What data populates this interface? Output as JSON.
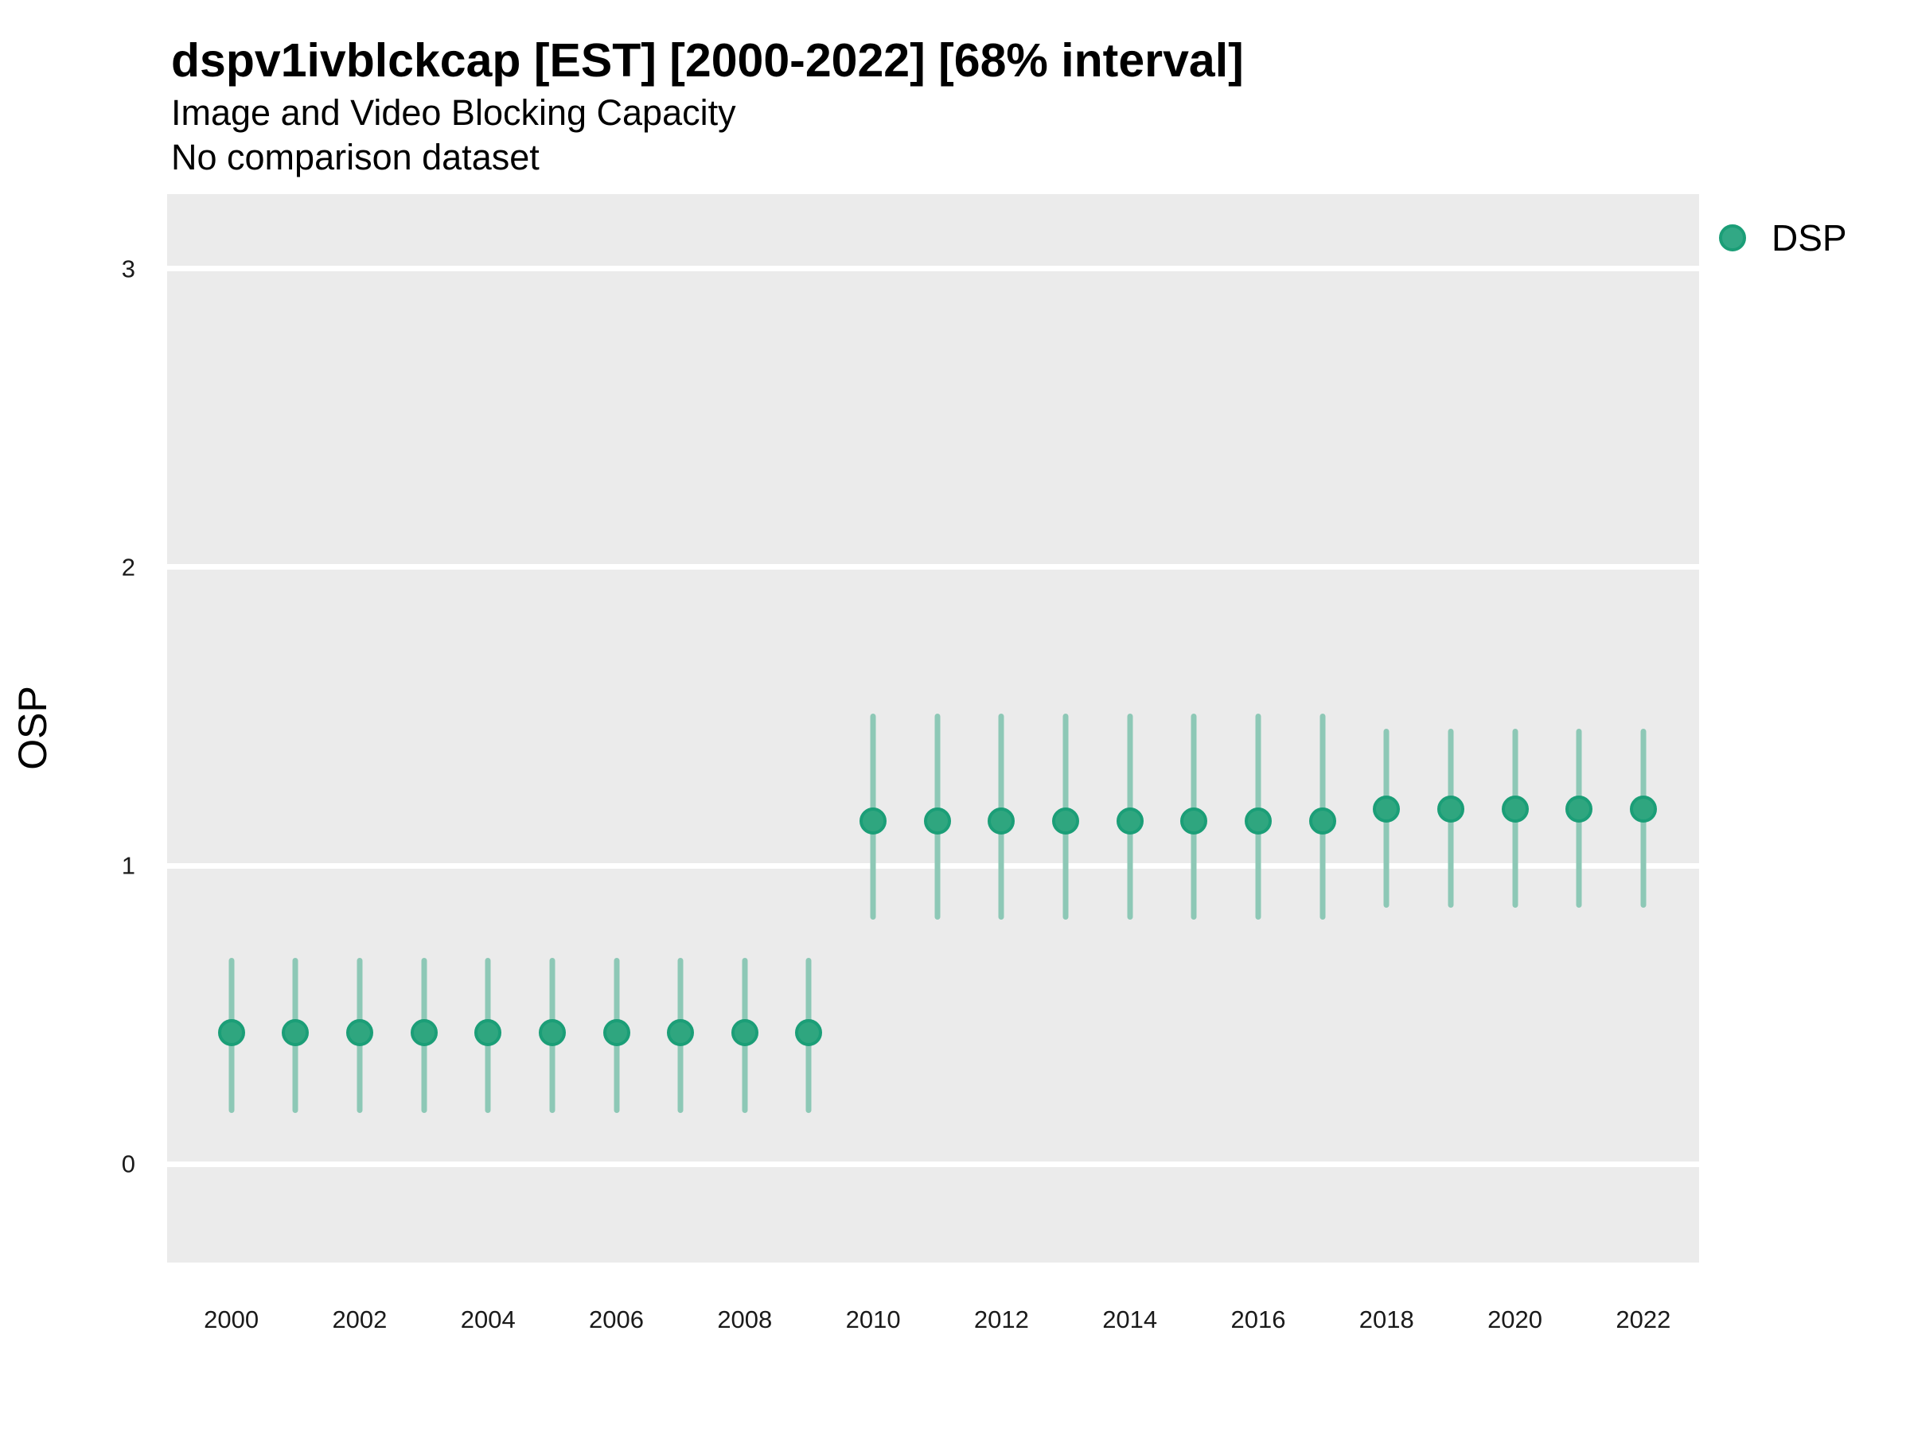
{
  "header": {
    "title": "dspv1ivblckcap [EST] [2000-2022] [68% interval]",
    "subtitle": "Image and Video Blocking Capacity",
    "note": "No comparison dataset"
  },
  "legend": {
    "items": [
      {
        "label": "DSP",
        "dot_fill": "#32a885",
        "dot_border": "#1b9e77"
      }
    ]
  },
  "colors": {
    "accent_green": "#1b9e77",
    "marker_fill": "#2fa67f",
    "marker_border": "#1b9e77",
    "interval_bar": "#8dc8b6",
    "panel_background": "#ebebeb",
    "gridline": "#ffffff",
    "text": "#000000"
  },
  "chart_data": {
    "type": "scatter",
    "title": "dspv1ivblckcap [EST] [2000-2022] [68% interval]",
    "subtitle": "Image and Video Blocking Capacity",
    "note": "No comparison dataset",
    "xlabel": "",
    "ylabel": "OSP",
    "interval": "68%",
    "legend_position": "right",
    "grid": "horizontal-major-white-on-gray",
    "xlim": [
      1999.0,
      2022.87
    ],
    "ylim": [
      -0.33,
      3.25
    ],
    "x_tick_labels": [
      "2000",
      "2002",
      "2004",
      "2006",
      "2008",
      "2010",
      "2012",
      "2014",
      "2016",
      "2018",
      "2020",
      "2022"
    ],
    "x_tick_years": [
      2000,
      2002,
      2004,
      2006,
      2008,
      2010,
      2012,
      2014,
      2016,
      2018,
      2020,
      2022
    ],
    "y_tick_labels": [
      "0",
      "1",
      "2",
      "3"
    ],
    "y_tick_values": [
      0,
      1,
      2,
      3
    ],
    "series": [
      {
        "name": "DSP",
        "points": [
          {
            "year": 2000,
            "est": 0.44,
            "lo": 0.17,
            "hi": 0.69
          },
          {
            "year": 2001,
            "est": 0.44,
            "lo": 0.17,
            "hi": 0.69
          },
          {
            "year": 2002,
            "est": 0.44,
            "lo": 0.17,
            "hi": 0.69
          },
          {
            "year": 2003,
            "est": 0.44,
            "lo": 0.17,
            "hi": 0.69
          },
          {
            "year": 2004,
            "est": 0.44,
            "lo": 0.17,
            "hi": 0.69
          },
          {
            "year": 2005,
            "est": 0.44,
            "lo": 0.17,
            "hi": 0.69
          },
          {
            "year": 2006,
            "est": 0.44,
            "lo": 0.17,
            "hi": 0.69
          },
          {
            "year": 2007,
            "est": 0.44,
            "lo": 0.17,
            "hi": 0.69
          },
          {
            "year": 2008,
            "est": 0.44,
            "lo": 0.17,
            "hi": 0.69
          },
          {
            "year": 2009,
            "est": 0.44,
            "lo": 0.17,
            "hi": 0.69
          },
          {
            "year": 2010,
            "est": 1.15,
            "lo": 0.82,
            "hi": 1.51
          },
          {
            "year": 2011,
            "est": 1.15,
            "lo": 0.82,
            "hi": 1.51
          },
          {
            "year": 2012,
            "est": 1.15,
            "lo": 0.82,
            "hi": 1.51
          },
          {
            "year": 2013,
            "est": 1.15,
            "lo": 0.82,
            "hi": 1.51
          },
          {
            "year": 2014,
            "est": 1.15,
            "lo": 0.82,
            "hi": 1.51
          },
          {
            "year": 2015,
            "est": 1.15,
            "lo": 0.82,
            "hi": 1.51
          },
          {
            "year": 2016,
            "est": 1.15,
            "lo": 0.82,
            "hi": 1.51
          },
          {
            "year": 2017,
            "est": 1.15,
            "lo": 0.82,
            "hi": 1.51
          },
          {
            "year": 2018,
            "est": 1.19,
            "lo": 0.86,
            "hi": 1.46
          },
          {
            "year": 2019,
            "est": 1.19,
            "lo": 0.86,
            "hi": 1.46
          },
          {
            "year": 2020,
            "est": 1.19,
            "lo": 0.86,
            "hi": 1.46
          },
          {
            "year": 2021,
            "est": 1.19,
            "lo": 0.86,
            "hi": 1.46
          },
          {
            "year": 2022,
            "est": 1.19,
            "lo": 0.86,
            "hi": 1.46
          }
        ]
      }
    ]
  }
}
